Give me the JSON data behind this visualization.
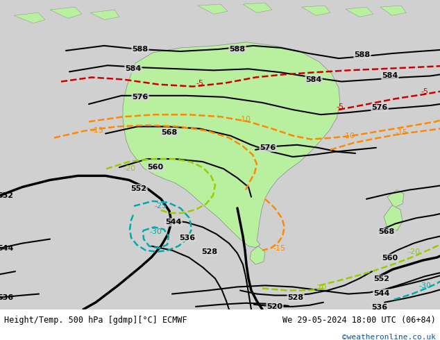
{
  "title_left": "Height/Temp. 500 hPa [gdmp][°C] ECMWF",
  "title_right": "We 29-05-2024 18:00 UTC (06+84)",
  "credit": "©weatheronline.co.uk",
  "bg_color": "#d8d8d8",
  "australia_fill": "#b8f0a0",
  "black_contour_color": "#000000",
  "red_contour_color": "#cc0000",
  "orange_contour_color": "#ff8800",
  "cyan_contour_color": "#00aaaa",
  "green_contour_color": "#99cc00",
  "footer_text_color": "#0055aa"
}
